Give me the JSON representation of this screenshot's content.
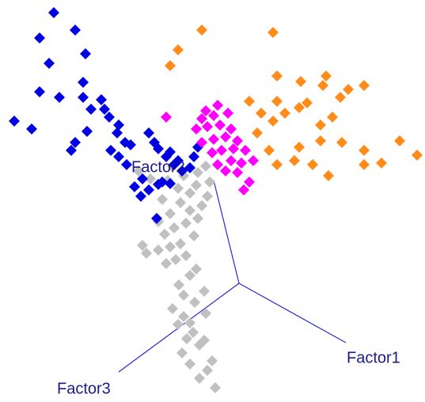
{
  "chart_data": {
    "type": "scatter",
    "axis_labels": [
      "Factor1",
      "Factor2",
      "Factor3"
    ],
    "xlim": [
      0,
      537
    ],
    "ylim": [
      508,
      0
    ],
    "series": [
      {
        "color": "#c0c0c0",
        "x": [
          272,
          252,
          262,
          240,
          268,
          230,
          252,
          258,
          236,
          244,
          225,
          240,
          232,
          260,
          218,
          246,
          232,
          258,
          226,
          240,
          248,
          210,
          222,
          235,
          185,
          200,
          215,
          180,
          228,
          245,
          208,
          220,
          235,
          250,
          200,
          215,
          240,
          255,
          228,
          205,
          262,
          240,
          225,
          248,
          265,
          212,
          190,
          232,
          250,
          175,
          260,
          218
        ],
        "y": [
          18,
          30,
          40,
          48,
          52,
          62,
          72,
          78,
          80,
          88,
          98,
          100,
          108,
          112,
          118,
          126,
          135,
          140,
          148,
          160,
          168,
          175,
          180,
          185,
          188,
          192,
          196,
          198,
          200,
          210,
          212,
          220,
          226,
          232,
          228,
          238,
          242,
          248,
          252,
          256,
          260,
          264,
          270,
          274,
          278,
          280,
          282,
          286,
          290,
          292,
          298,
          298
        ]
      },
      {
        "color": "#0000e0",
        "x": [
          198,
          178,
          188,
          200,
          205,
          180,
          170,
          215,
          230,
          220,
          210,
          200,
          195,
          188,
          215,
          225,
          240,
          160,
          150,
          165,
          140,
          158,
          148,
          150,
          138,
          132,
          128,
          110,
          90,
          95,
          115,
          105,
          75,
          50,
          40,
          18,
          105,
          62,
          108,
          50,
          95,
          68,
          245,
          250
        ],
        "y": [
          232,
          260,
          268,
          275,
          278,
          282,
          272,
          276,
          292,
          300,
          310,
          320,
          328,
          340,
          316,
          305,
          296,
          300,
          310,
          325,
          318,
          328,
          340,
          350,
          360,
          370,
          382,
          342,
          318,
          328,
          370,
          385,
          385,
          392,
          345,
          355,
          404,
          428,
          440,
          460,
          470,
          492,
          310,
          322
        ]
      },
      {
        "color": "#ff00ff",
        "x": [
          308,
          315,
          300,
          285,
          275,
          292,
          305,
          320,
          268,
          280,
          295,
          310,
          255,
          270,
          285,
          300,
          248,
          262,
          278,
          292,
          255,
          270,
          210,
          288,
          260,
          275
        ],
        "y": [
          268,
          278,
          290,
          292,
          300,
          305,
          302,
          305,
          315,
          318,
          320,
          318,
          328,
          332,
          335,
          330,
          345,
          348,
          350,
          345,
          358,
          362,
          360,
          365,
          368,
          375
        ]
      },
      {
        "color": "#ff8c1a",
        "x": [
          350,
          372,
          395,
          415,
          460,
          482,
          505,
          527,
          340,
          378,
          405,
          432,
          460,
          325,
          345,
          360,
          378,
          350,
          405,
          420,
          388,
          430,
          440,
          460,
          408,
          380,
          412,
          350,
          215,
          225,
          255,
          345,
          315,
          330
        ],
        "y": [
          300,
          305,
          300,
          286,
          300,
          302,
          330,
          312,
          318,
          322,
          330,
          328,
          318,
          340,
          355,
          365,
          372,
          380,
          350,
          360,
          378,
          385,
          395,
          400,
          400,
          405,
          412,
          412,
          425,
          445,
          470,
          467,
          380,
          365
        ]
      }
    ]
  }
}
